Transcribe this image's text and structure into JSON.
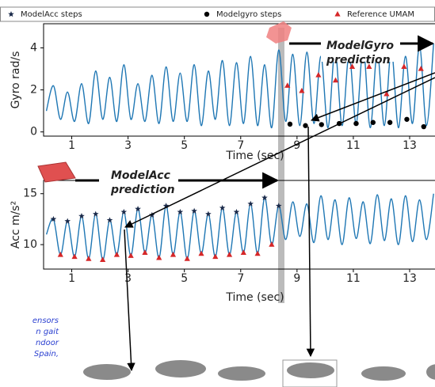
{
  "chart_data": [
    {
      "type": "line",
      "xlabel": "Time (sec)",
      "ylabel": "Gyro rad/s",
      "xlim": [
        0,
        13.9
      ],
      "ylim": [
        -0.2,
        5.15
      ],
      "xticks": [
        1,
        3,
        5,
        7,
        9,
        11,
        13
      ],
      "yticks": [
        0,
        2,
        4
      ],
      "annotation": [
        "ModelGyro",
        "prediction"
      ],
      "series": [
        {
          "color": "#1f77b4",
          "marker": "none",
          "x": [
            0.1,
            0.35,
            0.6,
            0.85,
            1.1,
            1.35,
            1.6,
            1.85,
            2.1,
            2.35,
            2.6,
            2.85,
            3.1,
            3.35,
            3.6,
            3.85,
            4.1,
            4.35,
            4.6,
            4.85,
            5.1,
            5.35,
            5.6,
            5.85,
            6.1,
            6.35,
            6.6,
            6.85,
            7.1,
            7.35,
            7.6,
            7.85,
            8.1,
            8.35,
            8.6,
            8.85,
            9.1,
            9.35,
            9.6,
            9.85,
            10.1,
            10.35,
            10.6,
            10.85,
            11.1,
            11.35,
            11.6,
            11.85,
            12.1,
            12.35,
            12.6,
            12.85,
            13.1,
            13.35,
            13.6,
            13.85
          ],
          "values": [
            1.0,
            2.2,
            0.6,
            1.9,
            0.5,
            2.3,
            0.4,
            2.9,
            0.6,
            2.6,
            0.5,
            3.2,
            0.6,
            2.3,
            0.5,
            2.7,
            0.4,
            3.1,
            0.5,
            2.8,
            0.5,
            3.2,
            0.3,
            2.9,
            0.6,
            3.4,
            0.3,
            3.3,
            0.4,
            3.6,
            0.3,
            3.2,
            0.2,
            3.9,
            0.5,
            3.7,
            0.3,
            3.8,
            0.4,
            3.6,
            0.2,
            3.9,
            0.3,
            3.7,
            0.4,
            4.0,
            0.2,
            3.8,
            0.3,
            3.9,
            0.2,
            3.6,
            0.4,
            4.1,
            0.3,
            4.2
          ]
        },
        {
          "name": "Modelgyro steps",
          "color": "#000000",
          "marker": "circle",
          "x": [
            8.75,
            9.3,
            9.87,
            10.5,
            11.1,
            11.7,
            12.3,
            12.9,
            13.5
          ],
          "values": [
            0.37,
            0.3,
            0.35,
            0.4,
            0.4,
            0.45,
            0.45,
            0.6,
            0.25
          ]
        },
        {
          "name": "Reference UMAM",
          "color": "#d62728",
          "marker": "triangle",
          "x": [
            8.66,
            9.17,
            9.76,
            10.37,
            10.96,
            11.56,
            12.18,
            12.8,
            13.4
          ],
          "values": [
            2.2,
            1.95,
            2.7,
            2.45,
            3.1,
            3.1,
            1.8,
            3.1,
            3.0
          ]
        }
      ]
    },
    {
      "type": "line",
      "xlabel": "Time (sec)",
      "ylabel": "Acc m/s²",
      "xlim": [
        0,
        13.9
      ],
      "ylim": [
        7.6,
        16.3
      ],
      "xticks": [
        1,
        3,
        5,
        7,
        9,
        11,
        13
      ],
      "yticks": [
        10,
        15
      ],
      "annotation": [
        "ModelAcc",
        "prediction"
      ],
      "series": [
        {
          "color": "#1f77b4",
          "marker": "none",
          "x": [
            0.1,
            0.35,
            0.6,
            0.85,
            1.1,
            1.35,
            1.6,
            1.85,
            2.1,
            2.35,
            2.6,
            2.85,
            3.1,
            3.35,
            3.6,
            3.85,
            4.1,
            4.35,
            4.6,
            4.85,
            5.1,
            5.35,
            5.6,
            5.85,
            6.1,
            6.35,
            6.6,
            6.85,
            7.1,
            7.35,
            7.6,
            7.85,
            8.1,
            8.35,
            8.6,
            8.85,
            9.1,
            9.35,
            9.6,
            9.85,
            10.1,
            10.35,
            10.6,
            10.85,
            11.1,
            11.35,
            11.6,
            11.85,
            12.1,
            12.35,
            12.6,
            12.85,
            13.1,
            13.35,
            13.6,
            13.85
          ],
          "values": [
            11.0,
            12.5,
            9.0,
            12.3,
            8.8,
            12.8,
            8.6,
            13.0,
            8.5,
            12.4,
            9.0,
            13.2,
            8.9,
            13.5,
            9.2,
            12.9,
            8.7,
            13.8,
            9.0,
            13.2,
            8.6,
            13.3,
            9.1,
            13.0,
            8.8,
            13.6,
            9.0,
            13.2,
            9.2,
            14.0,
            9.1,
            14.6,
            10.0,
            13.8,
            10.5,
            14.2,
            10.8,
            14.0,
            10.2,
            14.8,
            10.5,
            14.4,
            10.0,
            14.6,
            10.6,
            14.2,
            10.1,
            14.9,
            10.4,
            14.5,
            10.0,
            14.8,
            10.3,
            14.4,
            10.5,
            15.0
          ]
        },
        {
          "name": "ModelAcc steps",
          "color": "#1a2a4a",
          "marker": "star",
          "x": [
            0.35,
            0.85,
            1.35,
            1.85,
            2.35,
            2.85,
            3.35,
            3.85,
            4.35,
            4.85,
            5.35,
            5.85,
            6.35,
            6.85,
            7.35,
            7.85,
            8.35
          ],
          "values": [
            12.5,
            12.3,
            12.8,
            13.0,
            12.4,
            13.2,
            13.5,
            12.9,
            13.8,
            13.2,
            13.3,
            13.0,
            13.6,
            13.2,
            14.0,
            14.6,
            13.8
          ]
        },
        {
          "color": "#d62728",
          "marker": "triangle",
          "x": [
            0.6,
            1.1,
            1.6,
            2.1,
            2.6,
            3.1,
            3.6,
            4.1,
            4.6,
            5.1,
            5.6,
            6.1,
            6.6,
            7.1,
            7.6,
            8.1
          ],
          "values": [
            9.0,
            8.8,
            8.6,
            8.5,
            9.0,
            8.9,
            9.2,
            8.7,
            9.0,
            8.6,
            9.1,
            8.8,
            9.0,
            9.2,
            9.1,
            10.0
          ]
        }
      ]
    }
  ],
  "caption_fragment": [
    "ensors",
    "n gait",
    "ndoor",
    "Spain,"
  ]
}
